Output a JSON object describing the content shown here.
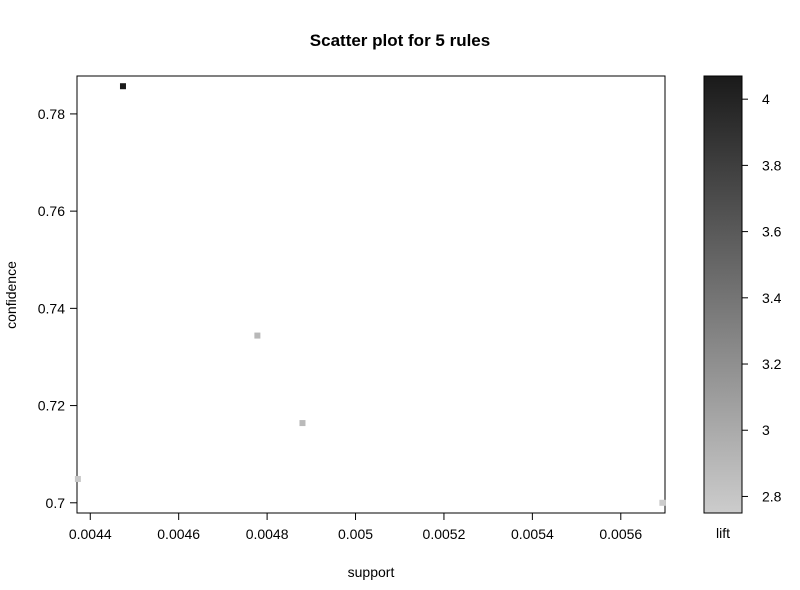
{
  "chart_data": {
    "type": "scatter",
    "title": "Scatter plot for 5 rules",
    "xlabel": "support",
    "ylabel": "confidence",
    "xlim": [
      0.00437,
      0.0057
    ],
    "ylim": [
      0.6979,
      0.7878
    ],
    "xticks": [
      {
        "value": 0.0044,
        "label": "0.0044"
      },
      {
        "value": 0.0046,
        "label": "0.0046"
      },
      {
        "value": 0.0048,
        "label": "0.0048"
      },
      {
        "value": 0.005,
        "label": "0.005"
      },
      {
        "value": 0.0052,
        "label": "0.0052"
      },
      {
        "value": 0.0054,
        "label": "0.0054"
      },
      {
        "value": 0.0056,
        "label": "0.0056"
      }
    ],
    "yticks": [
      {
        "value": 0.7,
        "label": "0.7"
      },
      {
        "value": 0.72,
        "label": "0.72"
      },
      {
        "value": 0.74,
        "label": "0.74"
      },
      {
        "value": 0.76,
        "label": "0.76"
      },
      {
        "value": 0.78,
        "label": "0.78"
      }
    ],
    "points": [
      {
        "x": 0.004474,
        "y": 0.7857,
        "lift": 4.07
      },
      {
        "x": 0.004778,
        "y": 0.7344,
        "lift": 2.9
      },
      {
        "x": 0.00488,
        "y": 0.7164,
        "lift": 2.88
      },
      {
        "x": 0.004372,
        "y": 0.7049,
        "lift": 2.78
      },
      {
        "x": 0.005694,
        "y": 0.7,
        "lift": 2.75
      }
    ],
    "colorbar": {
      "label": "lift",
      "range": [
        2.75,
        4.07
      ],
      "color_low": "#cccccc",
      "color_high": "#1a1a1a",
      "ticks": [
        {
          "value": 2.8,
          "label": "2.8"
        },
        {
          "value": 3.0,
          "label": "3"
        },
        {
          "value": 3.2,
          "label": "3.2"
        },
        {
          "value": 3.4,
          "label": "3.4"
        },
        {
          "value": 3.6,
          "label": "3.6"
        },
        {
          "value": 3.8,
          "label": "3.8"
        },
        {
          "value": 4.0,
          "label": "4"
        }
      ]
    },
    "grid": false,
    "legend": "right"
  }
}
